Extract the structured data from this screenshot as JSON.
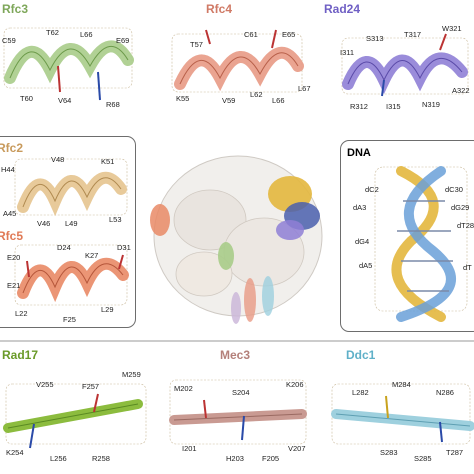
{
  "colors": {
    "rfc3": "#a9cc8a",
    "rfc4": "#e89a85",
    "rad24": "#8f7fd6",
    "rfc2": "#e6c48f",
    "rfc5": "#e98a66",
    "rad17": "#8cbc3e",
    "mec3": "#c99a92",
    "ddc1": "#9ed0de",
    "dna_title": "#000000",
    "mesh": "#c9b99a",
    "border": "#6d6d6d"
  },
  "panels": {
    "rfc3": {
      "title": "Rfc3",
      "residues": [
        "C59",
        "T62",
        "L66",
        "E69",
        "T60",
        "V64",
        "R68"
      ]
    },
    "rfc4": {
      "title": "Rfc4",
      "residues": [
        "T57",
        "C61",
        "E65",
        "K55",
        "V59",
        "L62",
        "L66",
        "L67"
      ]
    },
    "rad24": {
      "title": "Rad24",
      "residues": [
        "S313",
        "T317",
        "W321",
        "I311",
        "R312",
        "I315",
        "N319",
        "A322"
      ]
    },
    "rfc2": {
      "title": "Rfc2",
      "residues": [
        "V48",
        "K51",
        "H44",
        "A45",
        "V46",
        "L49",
        "L53"
      ]
    },
    "rfc5": {
      "title": "Rfc5",
      "residues": [
        "D24",
        "K27",
        "D31",
        "E20",
        "E21",
        "L22",
        "F25",
        "L29"
      ]
    },
    "dna": {
      "title": "DNA",
      "residues": [
        "dC2",
        "dC30",
        "dA3",
        "dG29",
        "dT28",
        "dG4",
        "dA5",
        "dT"
      ]
    },
    "rad17": {
      "title": "Rad17",
      "residues": [
        "V255",
        "F257",
        "M259",
        "K254",
        "L256",
        "R258"
      ]
    },
    "mec3": {
      "title": "Mec3",
      "residues": [
        "M202",
        "S204",
        "K206",
        "I201",
        "H203",
        "F205",
        "V207"
      ]
    },
    "ddc1": {
      "title": "Ddc1",
      "residues": [
        "L282",
        "M284",
        "N286",
        "S283",
        "S285",
        "T287"
      ]
    }
  }
}
